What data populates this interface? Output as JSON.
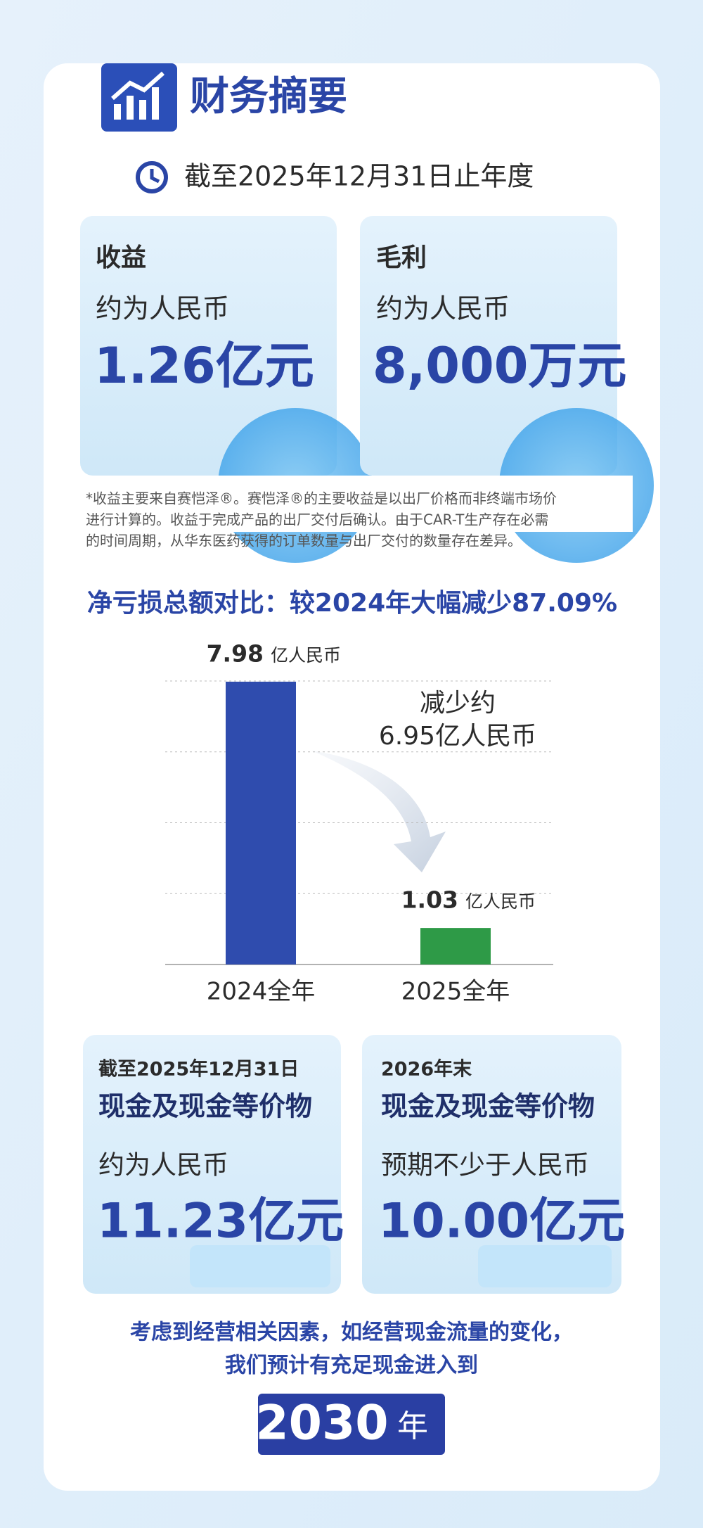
{
  "header": {
    "title": "财务摘要",
    "period": "截至2025年12月31日止年度"
  },
  "cards": [
    {
      "title": "收益",
      "subtitle": "约为人民币",
      "value": "1.26亿元"
    },
    {
      "title": "毛利",
      "subtitle": "约为人民币",
      "value": "8,000万元"
    }
  ],
  "note": [
    "*收益主要来自赛恺泽®。赛恺泽®的主要收益是以出厂价格而非终端市场价",
    "进行计算的。收益于完成产品的出厂交付后确认。由于CAR-T生产存在必需",
    "的时间周期，从华东医药获得的订单数量与出厂交付的数量存在差异。"
  ],
  "chart_data": {
    "type": "bar",
    "title": "净亏损总额对比：较2024年大幅减少87.09%",
    "categories": [
      "2024全年",
      "2025全年"
    ],
    "values": [
      7.98,
      1.03
    ],
    "unit_labels": [
      "亿人民币",
      "亿人民币"
    ],
    "colors": [
      "#2f4cae",
      "#2e9a47"
    ],
    "ylim": [
      0,
      8
    ],
    "yticks": [
      2,
      4,
      6,
      8
    ],
    "grid": true,
    "annotation": [
      "减少约",
      "6.95亿人民币"
    ]
  },
  "cash_cards": [
    {
      "label": "截至2025年12月31日",
      "title": "现金及现金等价物",
      "subtitle": "约为人民币",
      "value": "11.23亿元"
    },
    {
      "label": "2026年末",
      "title": "现金及现金等价物",
      "subtitle": "预期不少于人民币",
      "value": "10.00亿元"
    }
  ],
  "closing": {
    "lines": [
      "考虑到经营相关因素，如经营现金流量的变化，",
      "我们预计有充足现金进入到"
    ],
    "year": "2030",
    "year_suffix": "年"
  }
}
